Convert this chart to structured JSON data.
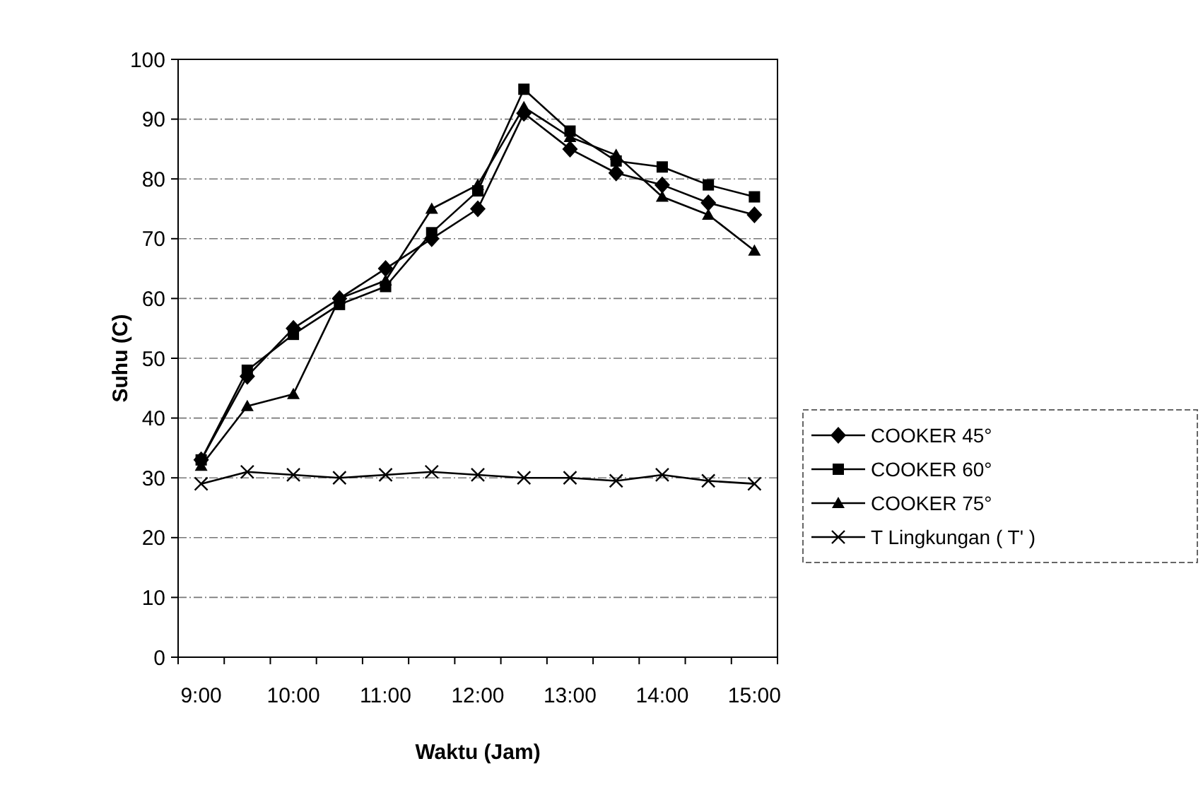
{
  "chart_data": {
    "type": "line",
    "xlabel": "Waktu (Jam)",
    "ylabel": "Suhu (C)",
    "categories": [
      "9:00",
      null,
      "10:00",
      null,
      "11:00",
      null,
      "12:00",
      null,
      "13:00",
      null,
      "14:00",
      null,
      "15:00"
    ],
    "ylim": [
      0,
      100
    ],
    "yticks": [
      0,
      10,
      20,
      30,
      40,
      50,
      60,
      70,
      80,
      90,
      100
    ],
    "grid": "y",
    "legend": "right",
    "series": [
      {
        "name": "COOKER 45°",
        "color": "#000000",
        "marker": "diamond",
        "values": [
          33,
          47,
          55,
          60,
          65,
          70,
          75,
          91,
          85,
          81,
          79,
          76,
          74
        ]
      },
      {
        "name": "COOKER 60°",
        "color": "#000000",
        "marker": "square",
        "values": [
          33,
          48,
          54,
          59,
          62,
          71,
          78,
          95,
          88,
          83,
          82,
          79,
          77
        ]
      },
      {
        "name": "COOKER 75°",
        "color": "#000000",
        "marker": "triangle",
        "values": [
          32,
          42,
          44,
          60,
          63,
          75,
          79,
          92,
          87,
          84,
          77,
          74,
          68
        ]
      },
      {
        "name": "T Lingkungan ( T' )",
        "color": "#000000",
        "marker": "cross",
        "values": [
          29,
          31,
          30.5,
          30,
          30.5,
          31,
          30.5,
          30,
          30,
          29.5,
          30.5,
          29.5,
          29
        ]
      }
    ]
  }
}
